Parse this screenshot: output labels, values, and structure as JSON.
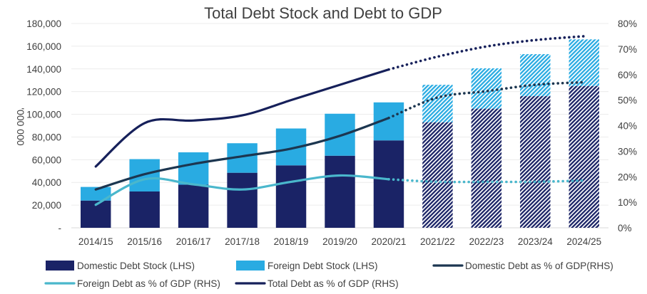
{
  "chart_data": {
    "type": "bar+line",
    "title": "Total Debt Stock and Debt to GDP",
    "ylabel_left": "'000 000",
    "ylim_left": [
      0,
      180000
    ],
    "ylim_right": [
      0,
      80
    ],
    "left_ticks": [
      {
        "value": 0,
        "label": "-"
      },
      {
        "value": 20000,
        "label": "20,000"
      },
      {
        "value": 40000,
        "label": "40,000"
      },
      {
        "value": 60000,
        "label": "60,000"
      },
      {
        "value": 80000,
        "label": "80,000"
      },
      {
        "value": 100000,
        "label": "100,000"
      },
      {
        "value": 120000,
        "label": "120,000"
      },
      {
        "value": 140000,
        "label": "140,000"
      },
      {
        "value": 160000,
        "label": "160,000"
      },
      {
        "value": 180000,
        "label": "180,000"
      }
    ],
    "right_ticks": [
      {
        "value": 0,
        "label": "0%"
      },
      {
        "value": 10,
        "label": "10%"
      },
      {
        "value": 20,
        "label": "20%"
      },
      {
        "value": 30,
        "label": "30%"
      },
      {
        "value": 40,
        "label": "40%"
      },
      {
        "value": 50,
        "label": "50%"
      },
      {
        "value": 60,
        "label": "60%"
      },
      {
        "value": 70,
        "label": "70%"
      },
      {
        "value": 80,
        "label": "80%"
      }
    ],
    "categories": [
      "2014/15",
      "2015/16",
      "2016/17",
      "2017/18",
      "2018/19",
      "2019/20",
      "2020/21",
      "2021/22",
      "2022/23",
      "2023/24",
      "2024/25"
    ],
    "projection_start_index": 7,
    "bar_series": [
      {
        "name": "Domestic Debt Stock (LHS)",
        "color": "#1a2366",
        "values": [
          24000,
          32000,
          38000,
          48500,
          55000,
          63500,
          77000,
          93000,
          105000,
          116000,
          125000
        ]
      },
      {
        "name": "Foreign Debt Stock (LHS)",
        "color": "#29abe2",
        "values": [
          12000,
          28500,
          28500,
          26000,
          32500,
          37000,
          33500,
          33000,
          35500,
          37000,
          41000
        ]
      }
    ],
    "line_series": [
      {
        "name": "Domestic Debt as % of GDP(RHS)",
        "color": "#1c3650",
        "values": [
          15,
          21,
          25,
          28,
          31,
          36,
          43,
          51,
          53.5,
          56,
          57
        ]
      },
      {
        "name": "Foreign Debt as % of GDP (RHS)",
        "color": "#4ab7cc",
        "values": [
          9,
          19,
          17,
          15,
          18,
          20.5,
          19,
          18,
          18,
          18,
          18.5
        ]
      },
      {
        "name": "Total Debt as % of GDP (RHS)",
        "color": "#16205a",
        "values": [
          24,
          41,
          42,
          44,
          50,
          56,
          62,
          67,
          71,
          73.5,
          75
        ]
      }
    ],
    "legend": [
      {
        "label": "Domestic Debt Stock (LHS)",
        "kind": "box",
        "color": "#1a2366"
      },
      {
        "label": "Foreign Debt Stock (LHS)",
        "kind": "box",
        "color": "#29abe2"
      },
      {
        "label": "Domestic Debt as % of GDP(RHS)",
        "kind": "line",
        "color": "#1c3650"
      },
      {
        "label": "Foreign Debt as % of GDP (RHS)",
        "kind": "line",
        "color": "#4ab7cc"
      },
      {
        "label": "Total Debt as % of GDP (RHS)",
        "kind": "line",
        "color": "#16205a"
      }
    ]
  }
}
